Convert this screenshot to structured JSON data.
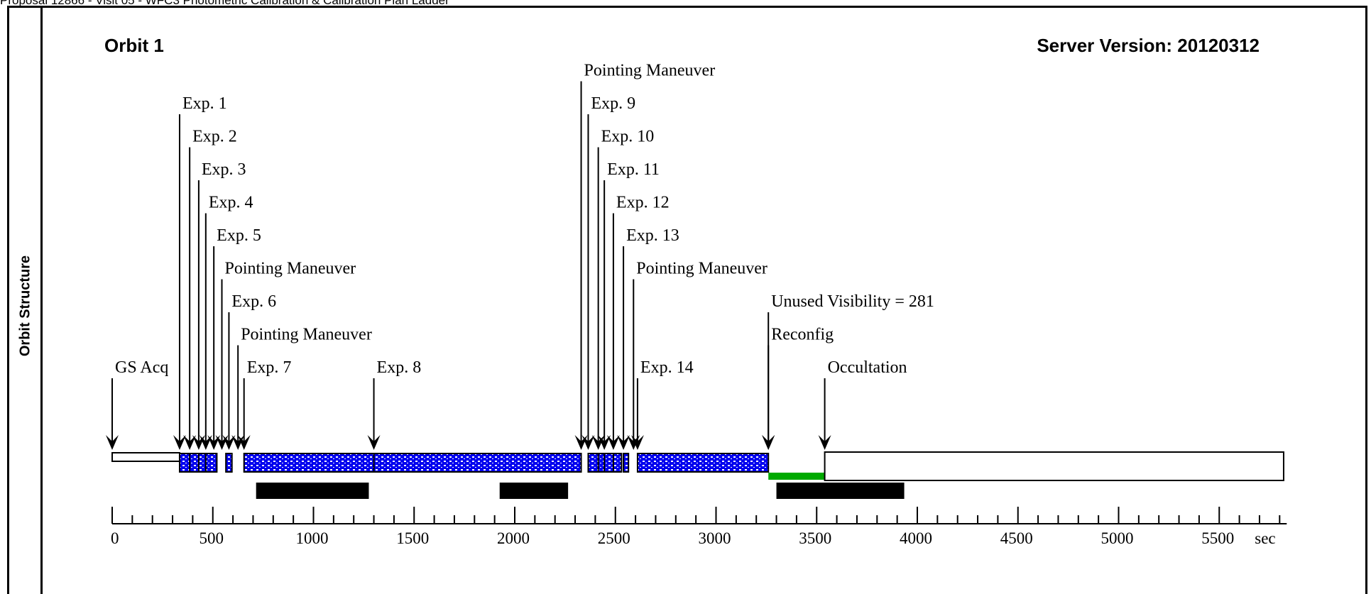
{
  "header": {
    "text": "Proposal 12866 - Visit 05 - WFC3 Photometric Calibration & Calibration Plan Ladder"
  },
  "side_label": "Orbit Structure",
  "orbit_title": "Orbit 1",
  "server_version": "Server Version: 20120312",
  "axis": {
    "ticks": [
      0,
      500,
      1000,
      1500,
      2000,
      2500,
      3000,
      3500,
      4000,
      4500,
      5000,
      5500
    ],
    "minor_step": 100,
    "max": 5800,
    "unit": "sec"
  },
  "events": [
    {
      "label": "GS Acq",
      "time": 0,
      "row": 0
    },
    {
      "label": "Exp. 1",
      "time": 335,
      "row": 8
    },
    {
      "label": "Exp. 2",
      "time": 385,
      "row": 7
    },
    {
      "label": "Exp. 3",
      "time": 430,
      "row": 6
    },
    {
      "label": "Exp. 4",
      "time": 465,
      "row": 5
    },
    {
      "label": "Exp. 5",
      "time": 505,
      "row": 4
    },
    {
      "label": "Pointing Maneuver",
      "time": 545,
      "row": 3
    },
    {
      "label": "Exp. 6",
      "time": 580,
      "row": 2
    },
    {
      "label": "Pointing Maneuver",
      "time": 625,
      "row": 1
    },
    {
      "label": "Exp. 7",
      "time": 655,
      "row": 0
    },
    {
      "label": "Exp. 8",
      "time": 1300,
      "row": 0
    },
    {
      "label": "Pointing Maneuver",
      "time": 2330,
      "row": 9
    },
    {
      "label": "Exp. 9",
      "time": 2365,
      "row": 8
    },
    {
      "label": "Exp. 10",
      "time": 2415,
      "row": 7
    },
    {
      "label": "Exp. 11",
      "time": 2445,
      "row": 6
    },
    {
      "label": "Exp. 12",
      "time": 2490,
      "row": 5
    },
    {
      "label": "Exp. 13",
      "time": 2540,
      "row": 4
    },
    {
      "label": "Pointing Maneuver",
      "time": 2590,
      "row": 3
    },
    {
      "label": "Exp. 14",
      "time": 2610,
      "row": 0
    },
    {
      "label": "Unused Visibility = 281",
      "time": 3260,
      "row": 2
    },
    {
      "label": "Reconfig",
      "time": 3260,
      "row": 1
    },
    {
      "label": "Occultation",
      "time": 3540,
      "row": 0
    }
  ],
  "exposure_bars": [
    {
      "start": 335,
      "end": 520
    },
    {
      "start": 565,
      "end": 595
    },
    {
      "start": 655,
      "end": 2330
    },
    {
      "start": 2365,
      "end": 2530
    },
    {
      "start": 2540,
      "end": 2565
    },
    {
      "start": 2610,
      "end": 3260
    }
  ],
  "dividers": [
    385,
    430,
    465,
    1300,
    2415,
    2445,
    2490
  ],
  "gs_bar": {
    "start": 0,
    "end": 335
  },
  "occultation_bar": {
    "start": 3540,
    "end": 5820
  },
  "unused_visibility": {
    "start": 3260,
    "end": 3540,
    "color": "#00aa00"
  },
  "black_bars": [
    {
      "start": 715,
      "end": 1275
    },
    {
      "start": 1925,
      "end": 2265
    },
    {
      "start": 3300,
      "end": 3935
    }
  ],
  "colors": {
    "exposure_fill": "#0000ee",
    "exposure_dot": "#ffffff"
  }
}
